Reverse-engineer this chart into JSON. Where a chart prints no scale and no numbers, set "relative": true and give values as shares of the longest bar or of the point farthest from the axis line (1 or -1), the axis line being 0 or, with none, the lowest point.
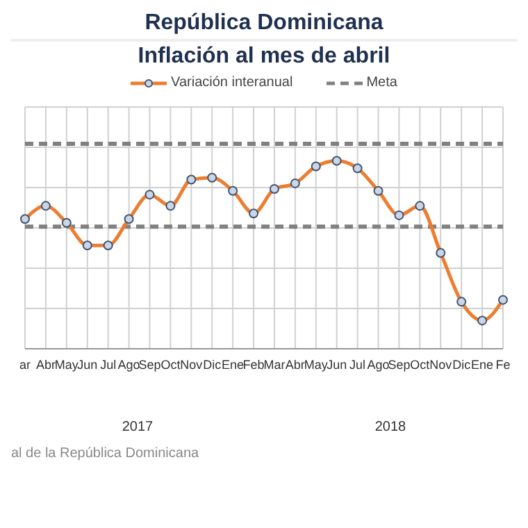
{
  "chart_data": {
    "type": "line",
    "title": "República Dominicana",
    "subtitle": "Inflación al mes de abril",
    "relative": true,
    "categories": [
      "ar",
      "Abr",
      "May",
      "Jun",
      "Jul",
      "Ago",
      "Sep",
      "Oct",
      "Nov",
      "Dic",
      "Ene",
      "Feb",
      "Mar",
      "Abr",
      "May",
      "Jun",
      "Jul",
      "Ago",
      "Sep",
      "Oct",
      "Nov",
      "Dic",
      "Ene",
      "Fe"
    ],
    "series": [
      {
        "name": "Variación interanual",
        "color": "#ed7d31",
        "values": [
          0.69,
          0.76,
          0.67,
          0.55,
          0.55,
          0.69,
          0.82,
          0.76,
          0.9,
          0.91,
          0.84,
          0.72,
          0.85,
          0.88,
          0.97,
          1,
          0.96,
          0.84,
          0.71,
          0.76,
          0.51,
          0.25,
          0.15,
          0.26
        ]
      }
    ],
    "ref_lines": [
      {
        "axis": "y",
        "value": 1.09,
        "label": "Meta",
        "color": "#808080",
        "line_style": "dashed"
      },
      {
        "axis": "y",
        "value": 0.65,
        "label": null,
        "color": "#808080",
        "line_style": "dashed"
      }
    ],
    "annotations": [
      "2017",
      "2018",
      "al de la República Dominicana"
    ],
    "marker": "circle",
    "line_style": "solid",
    "grid": true,
    "legend": "top"
  }
}
